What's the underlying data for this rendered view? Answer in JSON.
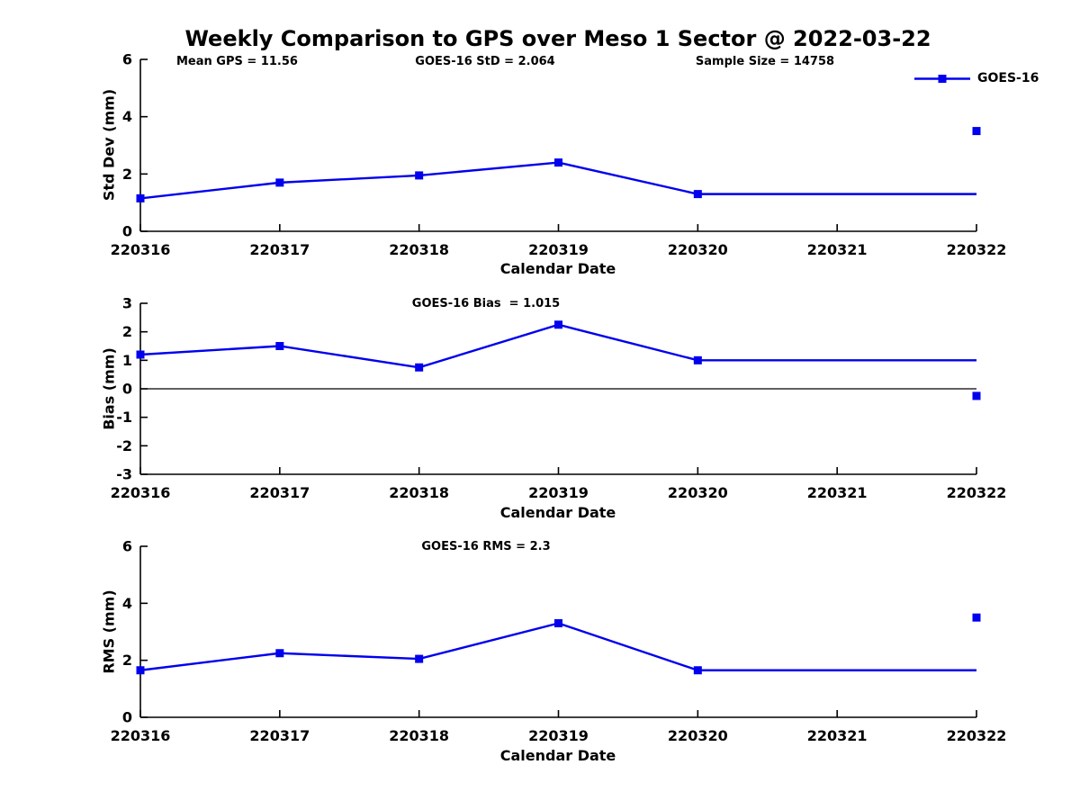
{
  "title": "Weekly Comparison to GPS over Meso 1 Sector @ 2022-03-22",
  "colors": {
    "series_blue": "#0000EE",
    "axis_black": "#000000",
    "background": "#FFFFFF"
  },
  "legend": {
    "label": "GOES-16",
    "position": "top-right",
    "marker": "filled-square"
  },
  "chart_data": [
    {
      "type": "line",
      "panel": "std-dev",
      "annotations": {
        "left": "Mean GPS = 11.56",
        "center": "GOES-16 StD = 2.064",
        "right": "Sample Size = 14758"
      },
      "xlabel": "Calendar Date",
      "ylabel": "Std Dev (mm)",
      "categories": [
        "220316",
        "220317",
        "220318",
        "220319",
        "220320",
        "220321",
        "220322"
      ],
      "ylim": [
        0,
        6
      ],
      "yticks": [
        0,
        2,
        4,
        6
      ],
      "grid": false,
      "series": [
        {
          "name": "GOES-16",
          "values": [
            1.15,
            1.7,
            1.95,
            2.4,
            1.3,
            1.3,
            1.3
          ],
          "markers_on_first_n_points": 5
        }
      ],
      "extra_point": {
        "category": "220322",
        "value": 3.5
      }
    },
    {
      "type": "line",
      "panel": "bias",
      "annotations": {
        "center": "GOES-16 Bias  = 1.015"
      },
      "xlabel": "Calendar Date",
      "ylabel": "Bias (mm)",
      "categories": [
        "220316",
        "220317",
        "220318",
        "220319",
        "220320",
        "220321",
        "220322"
      ],
      "ylim": [
        -3,
        3
      ],
      "yticks": [
        -3,
        -2,
        -1,
        0,
        1,
        2,
        3
      ],
      "zero_line": true,
      "grid": false,
      "series": [
        {
          "name": "GOES-16",
          "values": [
            1.2,
            1.5,
            0.75,
            2.25,
            1.0,
            1.0,
            1.0
          ],
          "markers_on_first_n_points": 5
        }
      ],
      "extra_point": {
        "category": "220322",
        "value": -0.25
      }
    },
    {
      "type": "line",
      "panel": "rms",
      "annotations": {
        "center": "GOES-16 RMS = 2.3"
      },
      "xlabel": "Calendar Date",
      "ylabel": "RMS (mm)",
      "categories": [
        "220316",
        "220317",
        "220318",
        "220319",
        "220320",
        "220321",
        "220322"
      ],
      "ylim": [
        0,
        6
      ],
      "yticks": [
        0,
        2,
        4,
        6
      ],
      "grid": false,
      "series": [
        {
          "name": "GOES-16",
          "values": [
            1.65,
            2.25,
            2.05,
            3.3,
            1.65,
            1.65,
            1.65
          ],
          "markers_on_first_n_points": 5
        }
      ],
      "extra_point": {
        "category": "220322",
        "value": 3.5
      }
    }
  ]
}
